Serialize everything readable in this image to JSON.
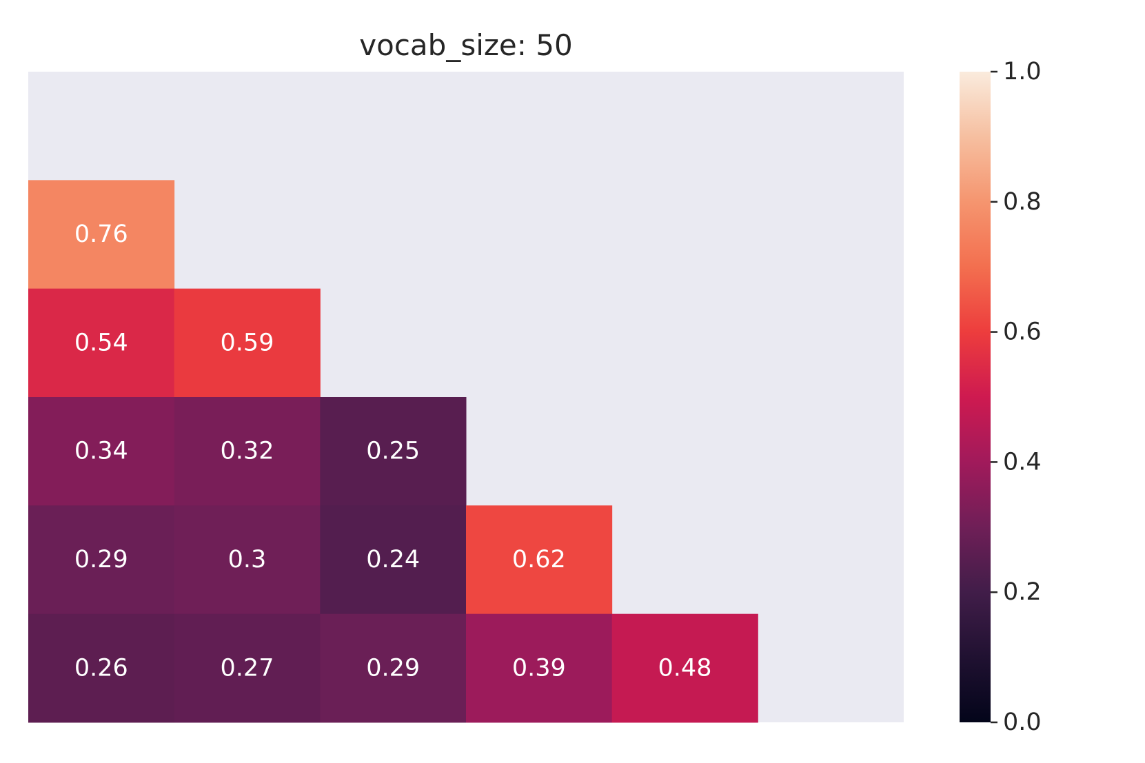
{
  "chart_data": {
    "type": "heatmap",
    "title": "vocab_size: 50",
    "xlabel": "",
    "ylabel": "",
    "rows": 6,
    "cols": 6,
    "mask": "upper-triangle-including-diagonal",
    "values": [
      [
        null,
        null,
        null,
        null,
        null,
        null
      ],
      [
        0.76,
        null,
        null,
        null,
        null,
        null
      ],
      [
        0.54,
        0.59,
        null,
        null,
        null,
        null
      ],
      [
        0.34,
        0.32,
        0.25,
        null,
        null,
        null
      ],
      [
        0.29,
        0.3,
        0.24,
        0.62,
        null,
        null
      ],
      [
        0.26,
        0.27,
        0.29,
        0.39,
        0.48,
        null
      ]
    ],
    "labels": [
      [
        null,
        null,
        null,
        null,
        null,
        null
      ],
      [
        "0.76",
        null,
        null,
        null,
        null,
        null
      ],
      [
        "0.54",
        "0.59",
        null,
        null,
        null,
        null
      ],
      [
        "0.34",
        "0.32",
        "0.25",
        null,
        null,
        null
      ],
      [
        "0.29",
        "0.3",
        "0.24",
        "0.62",
        null,
        null
      ],
      [
        "0.26",
        "0.27",
        "0.29",
        "0.39",
        "0.48",
        null
      ]
    ],
    "colorbar": {
      "vmin": 0.0,
      "vmax": 1.0,
      "ticks": [
        0.0,
        0.2,
        0.4,
        0.6,
        0.8,
        1.0
      ],
      "tick_labels": [
        "0.0",
        "0.2",
        "0.4",
        "0.6",
        "0.8",
        "1.0"
      ],
      "colormap": "rocket"
    },
    "colors": {
      "masked_background": "#eaeaf2",
      "annotation_text": "#ffffff",
      "text": "#262626"
    }
  }
}
